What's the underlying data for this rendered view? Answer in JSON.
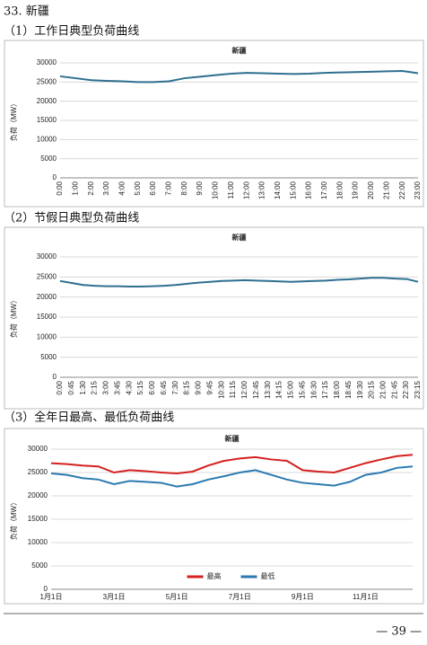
{
  "heading": "33. 新疆",
  "captions": [
    "（1）工作日典型负荷曲线",
    "（2）节假日典型负荷曲线",
    "（3）全年日最高、最低负荷曲线"
  ],
  "page_number": "— 39 —",
  "chart_data": [
    {
      "type": "line",
      "title": "新疆",
      "ylabel": "负荷（MW）",
      "ylim": [
        0,
        30000
      ],
      "yticks": [
        0,
        5000,
        10000,
        15000,
        20000,
        25000,
        30000
      ],
      "grid": true,
      "categories": [
        "0:00",
        "1:00",
        "2:00",
        "3:00",
        "4:00",
        "5:00",
        "6:00",
        "7:00",
        "8:00",
        "9:00",
        "10:00",
        "11:00",
        "12:00",
        "13:00",
        "14:00",
        "15:00",
        "16:00",
        "17:00",
        "18:00",
        "19:00",
        "20:00",
        "21:00",
        "22:00",
        "23:00"
      ],
      "series": [
        {
          "name": null,
          "color": "#2e6f90",
          "values": [
            26500,
            26000,
            25500,
            25300,
            25200,
            25000,
            25000,
            25200,
            26000,
            26400,
            26800,
            27200,
            27400,
            27300,
            27200,
            27100,
            27200,
            27400,
            27500,
            27600,
            27700,
            27800,
            27900,
            27300
          ]
        }
      ]
    },
    {
      "type": "line",
      "title": "新疆",
      "ylabel": "负荷（MW）",
      "ylim": [
        0,
        30000
      ],
      "yticks": [
        0,
        5000,
        10000,
        15000,
        20000,
        25000,
        30000
      ],
      "grid": true,
      "categories": [
        "0:00",
        "0:45",
        "1:30",
        "2:15",
        "3:00",
        "3:45",
        "4:30",
        "5:15",
        "6:00",
        "6:45",
        "7:30",
        "8:15",
        "9:00",
        "9:45",
        "10:30",
        "11:15",
        "12:00",
        "12:45",
        "13:30",
        "14:15",
        "15:00",
        "15:45",
        "16:30",
        "17:15",
        "18:00",
        "18:45",
        "19:30",
        "20:15",
        "21:00",
        "21:45",
        "22:30",
        "23:15"
      ],
      "series": [
        {
          "name": null,
          "color": "#2e6f90",
          "values": [
            24000,
            23500,
            23000,
            22800,
            22700,
            22700,
            22600,
            22600,
            22700,
            22800,
            23000,
            23300,
            23600,
            23800,
            24000,
            24100,
            24200,
            24100,
            24000,
            23900,
            23800,
            23900,
            24000,
            24100,
            24300,
            24400,
            24600,
            24800,
            24800,
            24600,
            24500,
            23800
          ]
        }
      ]
    },
    {
      "type": "line",
      "title": "新疆",
      "ylabel": "负荷（MW）",
      "ylim": [
        0,
        30000
      ],
      "yticks": [
        0,
        5000,
        10000,
        15000,
        20000,
        25000,
        30000
      ],
      "grid": true,
      "legend": "bottom",
      "categories": [
        "1月1日",
        null,
        null,
        null,
        "3月1日",
        null,
        null,
        null,
        "5月1日",
        null,
        null,
        null,
        "7月1日",
        null,
        null,
        null,
        "9月1日",
        null,
        null,
        null,
        "11月1日",
        null,
        null,
        null
      ],
      "series": [
        {
          "name": "最高",
          "color": "#d42020",
          "values": [
            27000,
            26800,
            26500,
            26300,
            25000,
            25500,
            25300,
            25000,
            24800,
            25200,
            26500,
            27500,
            28000,
            28300,
            27800,
            27500,
            25500,
            25200,
            25000,
            26000,
            27000,
            27800,
            28500,
            28800
          ]
        },
        {
          "name": "最低",
          "color": "#2a7ab0",
          "values": [
            24800,
            24500,
            23800,
            23500,
            22500,
            23200,
            23000,
            22800,
            22000,
            22500,
            23500,
            24200,
            25000,
            25500,
            24500,
            23500,
            22800,
            22500,
            22200,
            23000,
            24500,
            25000,
            26000,
            26300
          ]
        }
      ]
    }
  ]
}
